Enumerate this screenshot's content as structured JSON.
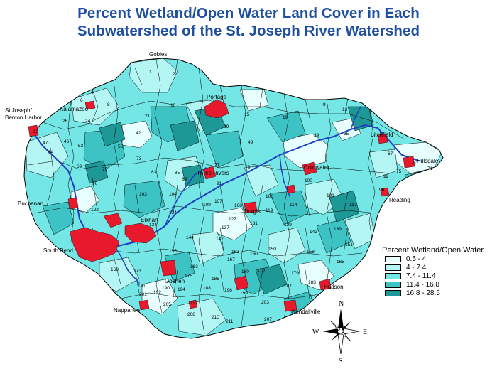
{
  "title": {
    "line1": "Percent Wetland/Open Water Land  Cover in Each",
    "line2": "Subwatershed of the St. Joseph River Watershed"
  },
  "cities": {
    "gobles": "Gobles",
    "portage": "Portage",
    "st_joseph_line1": "St Joseph/",
    "st_joseph_line2": "Benton Harbor",
    "litchfield": "Litchfield",
    "hillsdale": "Hillsdale",
    "reading": "Reading",
    "buchanan": "Buchanan",
    "south_bend": "South Bend",
    "nappanee": "Nappanee",
    "kendallville": "Kendallville",
    "hudson": "Hudson",
    "coldwater": "Coldwater",
    "sturgis": "Sturgis",
    "three_rivers": "Three Rivers",
    "elkhart": "Elkhart",
    "goshen": "Goshen",
    "kalamazoo": "Kalamazoo"
  },
  "compass": {
    "n": "N",
    "s": "S",
    "e": "E",
    "w": "W"
  },
  "legend": {
    "title": "Percent Wetland/Open Water",
    "classes": [
      {
        "label": "0.5 - 4",
        "color": "#e8ffff"
      },
      {
        "label": "4 - 7.4",
        "color": "#b3f6f4"
      },
      {
        "label": "7.4 - 11.4",
        "color": "#74e6e5"
      },
      {
        "label": "11.4 - 16.8",
        "color": "#3ec3c4"
      },
      {
        "label": "16.8 - 28.5",
        "color": "#1e9797"
      }
    ]
  },
  "colors": {
    "title": "#1f4fa0",
    "river": "#1f3fbf",
    "urban": "#e8192c",
    "boundary": "#000000"
  },
  "subwatershed_numbers": [
    "1",
    "2",
    "4",
    "6",
    "8",
    "9",
    "10",
    "13",
    "15",
    "19",
    "21",
    "24",
    "26",
    "29",
    "32",
    "35",
    "39",
    "42",
    "46",
    "47",
    "49",
    "52",
    "55",
    "61",
    "64",
    "67",
    "69",
    "71",
    "73",
    "75",
    "76",
    "77",
    "79",
    "83",
    "85",
    "89",
    "90",
    "91",
    "92",
    "96",
    "100",
    "101",
    "103",
    "104",
    "106",
    "107",
    "108",
    "109",
    "114",
    "117",
    "119",
    "122",
    "124",
    "127",
    "129",
    "131",
    "134",
    "137",
    "139",
    "142",
    "144",
    "147",
    "150",
    "151",
    "153",
    "155",
    "158",
    "160",
    "163",
    "165",
    "167",
    "168",
    "170",
    "173",
    "175",
    "179",
    "180",
    "183",
    "185",
    "187",
    "188",
    "190",
    "191",
    "192",
    "194",
    "196",
    "197",
    "199",
    "201",
    "203",
    "205",
    "207",
    "208",
    "210",
    "211"
  ]
}
